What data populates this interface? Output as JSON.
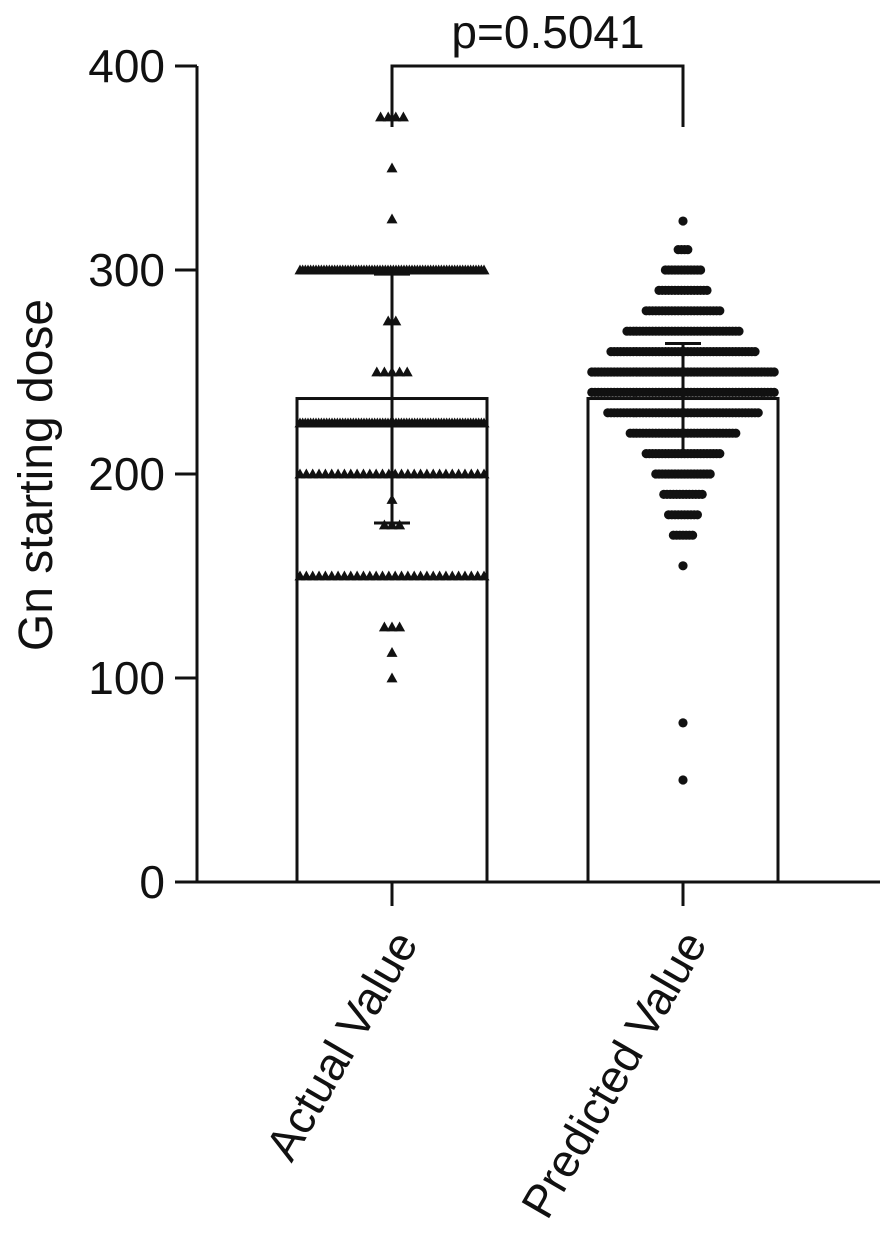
{
  "chart_data": {
    "type": "bar",
    "ylabel": "Gn starting dose",
    "ylim": [
      0,
      400
    ],
    "yticks": [
      0,
      100,
      200,
      300,
      400
    ],
    "categories": [
      "Actual Value",
      "Predicted Value"
    ],
    "bars": [
      {
        "category": "Actual Value",
        "mean": 237,
        "error_low": 176,
        "error_high": 298,
        "marker": "triangle"
      },
      {
        "category": "Predicted Value",
        "mean": 237,
        "error_low": 210,
        "error_high": 264,
        "marker": "circle"
      }
    ],
    "significance": {
      "label": "p=0.5041",
      "from": "Actual Value",
      "to": "Predicted Value"
    },
    "actual_points": [
      {
        "value": 375,
        "count": 4
      },
      {
        "value": 350,
        "count": 1
      },
      {
        "value": 325,
        "count": 1
      },
      {
        "value": 300,
        "count": 70
      },
      {
        "value": 275,
        "count": 2
      },
      {
        "value": 250,
        "count": 5
      },
      {
        "value": 225,
        "count": 70
      },
      {
        "value": 200,
        "count": 30
      },
      {
        "value": 187.5,
        "count": 1
      },
      {
        "value": 175,
        "count": 3
      },
      {
        "value": 150,
        "count": 30
      },
      {
        "value": 125,
        "count": 3
      },
      {
        "value": 112.5,
        "count": 1
      },
      {
        "value": 100,
        "count": 1
      }
    ],
    "predicted_points": [
      {
        "value": 324,
        "count": 1
      },
      {
        "value": 310,
        "count": 4
      },
      {
        "value": 300,
        "count": 12
      },
      {
        "value": 290,
        "count": 16
      },
      {
        "value": 280,
        "count": 24
      },
      {
        "value": 270,
        "count": 36
      },
      {
        "value": 260,
        "count": 46
      },
      {
        "value": 250,
        "count": 58
      },
      {
        "value": 240,
        "count": 58
      },
      {
        "value": 230,
        "count": 48
      },
      {
        "value": 220,
        "count": 34
      },
      {
        "value": 210,
        "count": 24
      },
      {
        "value": 200,
        "count": 18
      },
      {
        "value": 190,
        "count": 13
      },
      {
        "value": 180,
        "count": 10
      },
      {
        "value": 170,
        "count": 7
      },
      {
        "value": 155,
        "count": 1
      },
      {
        "value": 78,
        "count": 1
      },
      {
        "value": 50,
        "count": 1
      }
    ]
  },
  "colors": {
    "axis": "#111111",
    "marker": "#111111",
    "bar_fill": "#ffffff"
  }
}
